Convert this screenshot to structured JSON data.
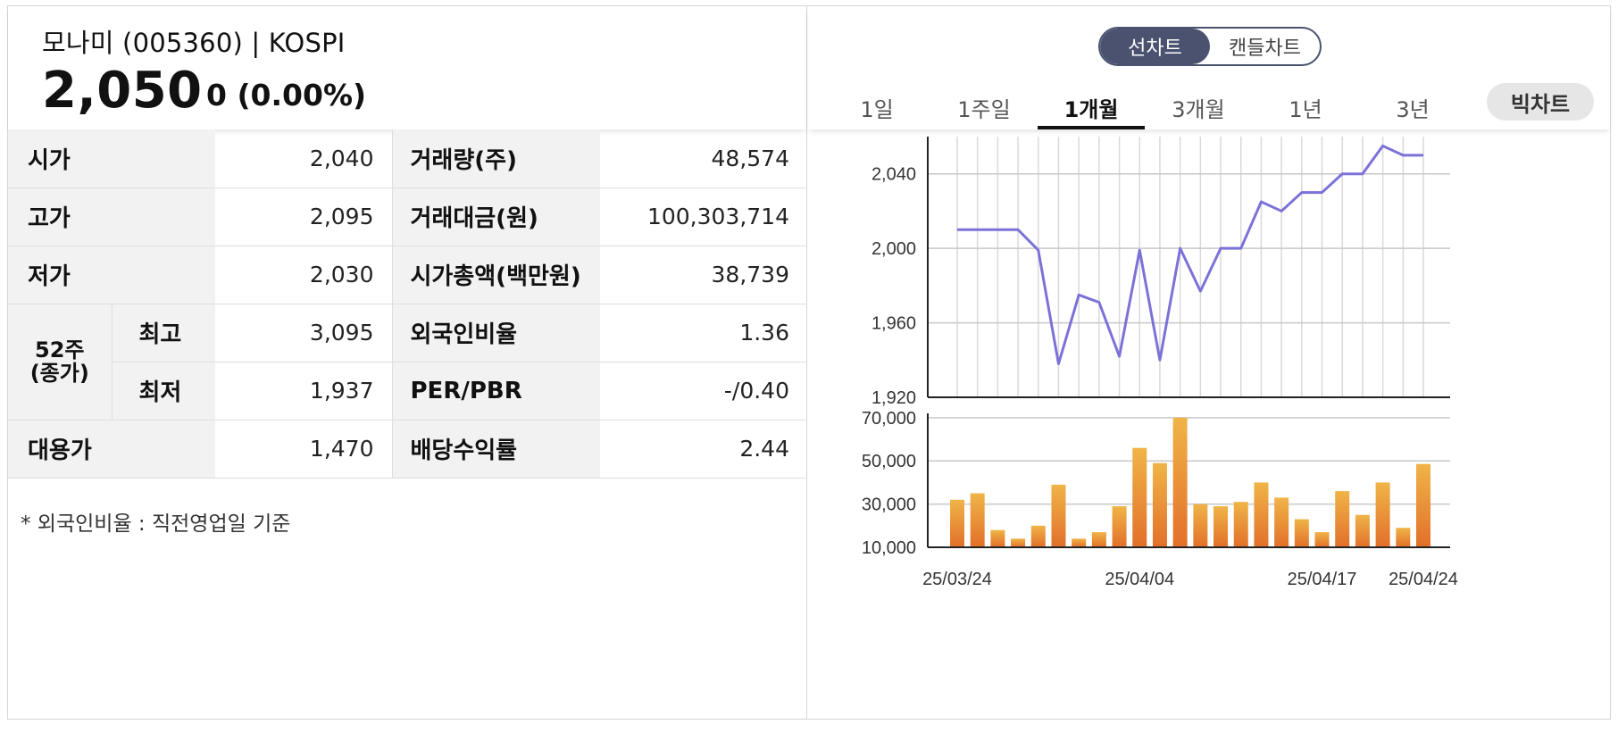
{
  "stock": {
    "title": "모나미 (005360) | KOSPI",
    "price": "2,050",
    "change": "0 (0.00%)"
  },
  "info": {
    "open_label": "시가",
    "open_value": "2,040",
    "volume_label": "거래량(주)",
    "volume_value": "48,574",
    "high_label": "고가",
    "high_value": "2,095",
    "trade_amount_label": "거래대금(원)",
    "trade_amount_value": "100,303,714",
    "low_label": "저가",
    "low_value": "2,030",
    "market_cap_label": "시가총액(백만원)",
    "market_cap_value": "38,739",
    "week52_label_line1": "52주",
    "week52_label_line2": "(종가)",
    "week52_high_label": "최고",
    "week52_high_value": "3,095",
    "foreign_ratio_label": "외국인비율",
    "foreign_ratio_value": "1.36",
    "week52_low_label": "최저",
    "week52_low_value": "1,937",
    "per_pbr_label": "PER/PBR",
    "per_pbr_value": "-/0.40",
    "substitute_price_label": "대용가",
    "substitute_price_value": "1,470",
    "dividend_yield_label": "배당수익률",
    "dividend_yield_value": "2.44"
  },
  "footnote": "* 외국인비율 : 직전영업일 기준",
  "chart_controls": {
    "type_options": [
      "선차트",
      "캔들차트"
    ],
    "active_type": "선차트",
    "periods": [
      "1일",
      "1주일",
      "1개월",
      "3개월",
      "1년",
      "3년"
    ],
    "active_period": "1개월",
    "big_chart_label": "빅차트"
  },
  "colors": {
    "price_line": "#7b72d8",
    "volume_bar_top": "#f0b448",
    "volume_bar_bottom": "#e2702a",
    "toggle_active": "#4a5270"
  },
  "chart_data": [
    {
      "type": "line",
      "series": [
        {
          "values": [
            2010,
            2010,
            2010,
            2010,
            1999,
            1938,
            1975,
            1971,
            1942,
            1999,
            1940,
            2000,
            1977,
            2000,
            2000,
            2025,
            2020,
            2030,
            2030,
            2040,
            2040,
            2055,
            2050,
            2050
          ]
        }
      ],
      "ylim": [
        1920,
        2060
      ],
      "yticks": [
        "2,040",
        "2,000",
        "1,960",
        "1,920"
      ],
      "ytick_values": [
        2040,
        2000,
        1960,
        1920
      ],
      "grid": true
    },
    {
      "type": "bar",
      "series": [
        {
          "values": [
            32000,
            35000,
            18000,
            14000,
            20000,
            39000,
            14000,
            17000,
            29000,
            56000,
            49000,
            70000,
            30000,
            29000,
            31000,
            40000,
            33000,
            23000,
            17000,
            36000,
            25000,
            40000,
            19000,
            48574
          ]
        }
      ],
      "ylim": [
        10000,
        72000
      ],
      "yticks": [
        "70,000",
        "50,000",
        "30,000",
        "10,000"
      ],
      "ytick_values": [
        70000,
        50000,
        30000,
        10000
      ],
      "xtick_labels": [
        "25/03/24",
        "25/04/04",
        "25/04/17",
        "25/04/24"
      ],
      "xtick_indices": [
        0,
        9,
        18,
        23
      ],
      "grid": true
    }
  ]
}
